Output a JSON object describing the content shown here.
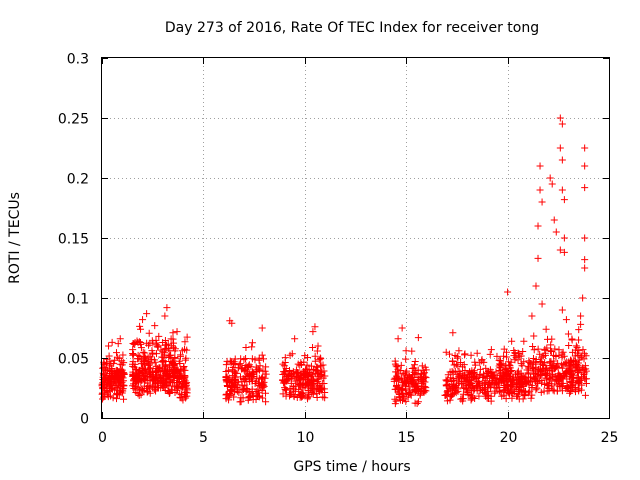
{
  "chart_data": {
    "type": "scatter",
    "title": "Day 273 of 2016, Rate Of TEC Index for receiver tong",
    "xlabel": "GPS time / hours",
    "ylabel": "ROTI / TECUs",
    "xlim": [
      0,
      25
    ],
    "ylim": [
      0,
      0.3
    ],
    "xticks": [
      0,
      5,
      10,
      15,
      20,
      25
    ],
    "xtick_labels": [
      "0",
      "5",
      "10",
      "15",
      "20",
      "25"
    ],
    "yticks": [
      0,
      0.05,
      0.1,
      0.15,
      0.2,
      0.25,
      0.3
    ],
    "ytick_labels": [
      "0",
      "0.05",
      "0.1",
      "0.15",
      "0.2",
      "0.25",
      "0.3"
    ],
    "grid": true,
    "marker": "+",
    "color": "#ff0000",
    "series": [
      {
        "name": "ROTI",
        "segments": [
          {
            "x_range": [
              0.0,
              1.1
            ],
            "base": 0.022,
            "spread": 0.03,
            "count": 170
          },
          {
            "x_range": [
              1.5,
              2.5
            ],
            "base": 0.025,
            "spread": 0.045,
            "count": 150
          },
          {
            "x_range": [
              2.5,
              3.6
            ],
            "base": 0.025,
            "spread": 0.045,
            "count": 160
          },
          {
            "x_range": [
              3.6,
              4.2
            ],
            "base": 0.02,
            "spread": 0.04,
            "count": 80
          },
          {
            "x_range": [
              6.1,
              8.1
            ],
            "base": 0.02,
            "spread": 0.035,
            "count": 200
          },
          {
            "x_range": [
              8.9,
              11.0
            ],
            "base": 0.022,
            "spread": 0.03,
            "count": 220
          },
          {
            "x_range": [
              14.4,
              16.0
            ],
            "base": 0.018,
            "spread": 0.03,
            "count": 160
          },
          {
            "x_range": [
              16.9,
              19.5
            ],
            "base": 0.02,
            "spread": 0.03,
            "count": 230
          },
          {
            "x_range": [
              19.5,
              21.2
            ],
            "base": 0.022,
            "spread": 0.035,
            "count": 200
          },
          {
            "x_range": [
              21.2,
              23.9
            ],
            "base": 0.025,
            "spread": 0.045,
            "count": 280
          }
        ],
        "highlights": [
          {
            "x": 0.5,
            "y": 0.063
          },
          {
            "x": 0.8,
            "y": 0.062
          },
          {
            "x": 0.9,
            "y": 0.066
          },
          {
            "x": 1.9,
            "y": 0.074
          },
          {
            "x": 2.0,
            "y": 0.082
          },
          {
            "x": 2.2,
            "y": 0.087
          },
          {
            "x": 2.6,
            "y": 0.077
          },
          {
            "x": 2.8,
            "y": 0.068
          },
          {
            "x": 3.1,
            "y": 0.085
          },
          {
            "x": 3.2,
            "y": 0.092
          },
          {
            "x": 3.5,
            "y": 0.071
          },
          {
            "x": 3.7,
            "y": 0.072
          },
          {
            "x": 6.3,
            "y": 0.081
          },
          {
            "x": 6.4,
            "y": 0.079
          },
          {
            "x": 7.9,
            "y": 0.075
          },
          {
            "x": 9.5,
            "y": 0.066
          },
          {
            "x": 10.5,
            "y": 0.076
          },
          {
            "x": 10.4,
            "y": 0.072
          },
          {
            "x": 14.8,
            "y": 0.075
          },
          {
            "x": 14.6,
            "y": 0.066
          },
          {
            "x": 15.6,
            "y": 0.067
          },
          {
            "x": 17.3,
            "y": 0.071
          },
          {
            "x": 17.6,
            "y": 0.056
          },
          {
            "x": 18.5,
            "y": 0.054
          },
          {
            "x": 19.2,
            "y": 0.057
          },
          {
            "x": 20.0,
            "y": 0.105
          },
          {
            "x": 20.2,
            "y": 0.064
          },
          {
            "x": 20.8,
            "y": 0.064
          },
          {
            "x": 21.2,
            "y": 0.085
          },
          {
            "x": 21.4,
            "y": 0.11
          },
          {
            "x": 21.5,
            "y": 0.133
          },
          {
            "x": 21.5,
            "y": 0.16
          },
          {
            "x": 21.6,
            "y": 0.21
          },
          {
            "x": 21.6,
            "y": 0.19
          },
          {
            "x": 21.7,
            "y": 0.18
          },
          {
            "x": 21.7,
            "y": 0.095
          },
          {
            "x": 21.9,
            "y": 0.074
          },
          {
            "x": 22.1,
            "y": 0.2
          },
          {
            "x": 22.2,
            "y": 0.195
          },
          {
            "x": 22.3,
            "y": 0.165
          },
          {
            "x": 22.4,
            "y": 0.155
          },
          {
            "x": 22.6,
            "y": 0.25
          },
          {
            "x": 22.6,
            "y": 0.225
          },
          {
            "x": 22.6,
            "y": 0.14
          },
          {
            "x": 22.7,
            "y": 0.245
          },
          {
            "x": 22.7,
            "y": 0.215
          },
          {
            "x": 22.7,
            "y": 0.19
          },
          {
            "x": 22.8,
            "y": 0.182
          },
          {
            "x": 22.8,
            "y": 0.15
          },
          {
            "x": 22.8,
            "y": 0.138
          },
          {
            "x": 22.7,
            "y": 0.09
          },
          {
            "x": 22.9,
            "y": 0.082
          },
          {
            "x": 23.0,
            "y": 0.07
          },
          {
            "x": 23.6,
            "y": 0.085
          },
          {
            "x": 23.6,
            "y": 0.078
          },
          {
            "x": 23.8,
            "y": 0.225
          },
          {
            "x": 23.8,
            "y": 0.21
          },
          {
            "x": 23.8,
            "y": 0.192
          },
          {
            "x": 23.8,
            "y": 0.15
          },
          {
            "x": 23.8,
            "y": 0.132
          },
          {
            "x": 23.8,
            "y": 0.125
          },
          {
            "x": 23.5,
            "y": 0.065
          },
          {
            "x": 23.7,
            "y": 0.1
          }
        ]
      }
    ]
  }
}
